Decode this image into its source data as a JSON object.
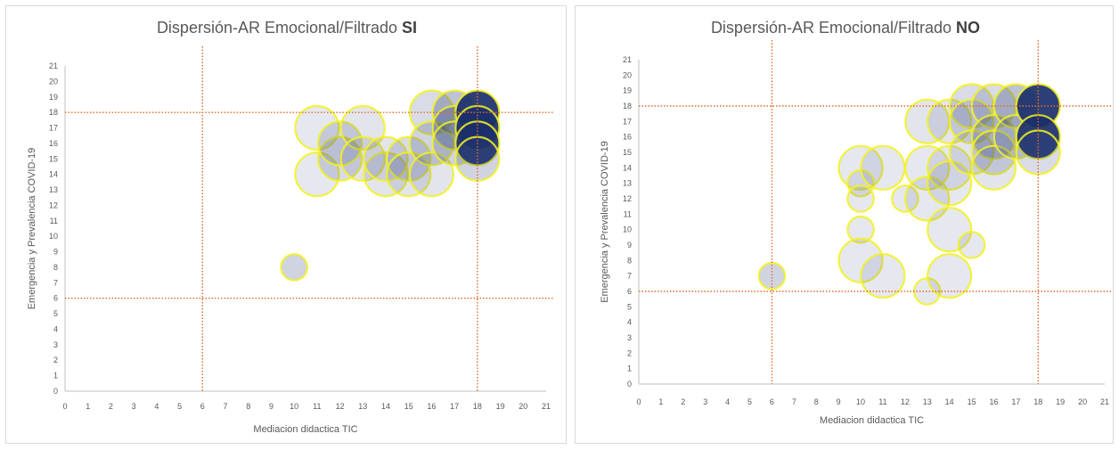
{
  "colors": {
    "bubble_fill": "#dfe3ee",
    "bubble_fill_dark": "#1b2f6b",
    "bubble_stroke": "#f2f21f",
    "ref_line": "#e26b2a",
    "axis": "#bfbfbf",
    "text": "#595959"
  },
  "chart_data": [
    {
      "type": "scatter",
      "title": "Dispersión-AR Emocional/Filtrado ",
      "title_bold": "SI",
      "xlabel": "Mediacion didactica TIC",
      "ylabel": "Emergencia y Prevalencia COVID-19",
      "xlim": [
        0,
        21
      ],
      "ylim": [
        0,
        21
      ],
      "xticks": [
        "0",
        "1",
        "2",
        "3",
        "4",
        "5",
        "6",
        "7",
        "8",
        "9",
        "10",
        "11",
        "12",
        "13",
        "14",
        "15",
        "16",
        "17",
        "18",
        "19",
        "20",
        "21"
      ],
      "yticks": [
        "0",
        "1",
        "2",
        "3",
        "4",
        "5",
        "6",
        "7",
        "8",
        "9",
        "10",
        "11",
        "12",
        "13",
        "14",
        "15",
        "16",
        "17",
        "18",
        "19",
        "20",
        "21"
      ],
      "reference_lines": {
        "x": [
          6,
          18
        ],
        "y": [
          6,
          18
        ]
      },
      "points": [
        {
          "x": 10,
          "y": 8,
          "size": 1,
          "opacity": 0.6
        },
        {
          "x": 11,
          "y": 17,
          "size": 2,
          "opacity": 0.45
        },
        {
          "x": 11,
          "y": 14,
          "size": 2,
          "opacity": 0.45
        },
        {
          "x": 12,
          "y": 15,
          "size": 2,
          "opacity": 0.55
        },
        {
          "x": 12,
          "y": 16,
          "size": 2,
          "opacity": 0.55
        },
        {
          "x": 13,
          "y": 17,
          "size": 2,
          "opacity": 0.5
        },
        {
          "x": 13,
          "y": 15,
          "size": 2,
          "opacity": 0.5
        },
        {
          "x": 14,
          "y": 14,
          "size": 2,
          "opacity": 0.5
        },
        {
          "x": 14,
          "y": 15,
          "size": 2,
          "opacity": 0.5
        },
        {
          "x": 15,
          "y": 15,
          "size": 2,
          "opacity": 0.55
        },
        {
          "x": 15,
          "y": 14,
          "size": 2,
          "opacity": 0.5
        },
        {
          "x": 16,
          "y": 18,
          "size": 2,
          "opacity": 0.55
        },
        {
          "x": 16,
          "y": 16,
          "size": 2,
          "opacity": 0.6
        },
        {
          "x": 16,
          "y": 14,
          "size": 2,
          "opacity": 0.5
        },
        {
          "x": 17,
          "y": 18,
          "size": 2,
          "opacity": 0.7
        },
        {
          "x": 17,
          "y": 17,
          "size": 2,
          "opacity": 0.7
        },
        {
          "x": 17,
          "y": 16,
          "size": 2,
          "opacity": 0.6
        },
        {
          "x": 18,
          "y": 18,
          "size": 2,
          "opacity": 1.0
        },
        {
          "x": 18,
          "y": 17,
          "size": 2,
          "opacity": 0.95
        },
        {
          "x": 18,
          "y": 16,
          "size": 2,
          "opacity": 0.9
        },
        {
          "x": 18,
          "y": 15,
          "size": 2,
          "opacity": 0.6
        }
      ]
    },
    {
      "type": "scatter",
      "title": "Dispersión-AR Emocional/Filtrado ",
      "title_bold": "NO",
      "xlabel": "Mediacion didactica TIC",
      "ylabel": "Emergencia y Prevalencia COVID-19",
      "xlim": [
        0,
        21
      ],
      "ylim": [
        0,
        21
      ],
      "xticks": [
        "0",
        "1",
        "2",
        "3",
        "4",
        "5",
        "6",
        "7",
        "8",
        "9",
        "10",
        "11",
        "12",
        "13",
        "14",
        "15",
        "16",
        "17",
        "18",
        "19",
        "20",
        "21"
      ],
      "yticks": [
        "0",
        "1",
        "2",
        "3",
        "4",
        "5",
        "6",
        "7",
        "8",
        "9",
        "10",
        "11",
        "12",
        "13",
        "14",
        "15",
        "16",
        "17",
        "18",
        "19",
        "20",
        "21"
      ],
      "reference_lines": {
        "x": [
          6,
          18
        ],
        "y": [
          6,
          18
        ]
      },
      "points": [
        {
          "x": 6,
          "y": 7,
          "size": 1,
          "opacity": 0.6
        },
        {
          "x": 10,
          "y": 14,
          "size": 2,
          "opacity": 0.45
        },
        {
          "x": 10,
          "y": 13,
          "size": 1,
          "opacity": 0.45
        },
        {
          "x": 10,
          "y": 12,
          "size": 1,
          "opacity": 0.45
        },
        {
          "x": 10,
          "y": 10,
          "size": 1,
          "opacity": 0.45
        },
        {
          "x": 10,
          "y": 8,
          "size": 2,
          "opacity": 0.45
        },
        {
          "x": 11,
          "y": 14,
          "size": 2,
          "opacity": 0.45
        },
        {
          "x": 11,
          "y": 7,
          "size": 2,
          "opacity": 0.45
        },
        {
          "x": 12,
          "y": 12,
          "size": 1,
          "opacity": 0.45
        },
        {
          "x": 13,
          "y": 17,
          "size": 2,
          "opacity": 0.5
        },
        {
          "x": 13,
          "y": 14,
          "size": 2,
          "opacity": 0.45
        },
        {
          "x": 13,
          "y": 12,
          "size": 2,
          "opacity": 0.45
        },
        {
          "x": 13,
          "y": 6,
          "size": 1,
          "opacity": 0.45
        },
        {
          "x": 14,
          "y": 17,
          "size": 2,
          "opacity": 0.5
        },
        {
          "x": 14,
          "y": 14,
          "size": 2,
          "opacity": 0.45
        },
        {
          "x": 14,
          "y": 13,
          "size": 2,
          "opacity": 0.45
        },
        {
          "x": 14,
          "y": 10,
          "size": 2,
          "opacity": 0.45
        },
        {
          "x": 14,
          "y": 7,
          "size": 2,
          "opacity": 0.45
        },
        {
          "x": 15,
          "y": 18,
          "size": 2,
          "opacity": 0.55
        },
        {
          "x": 15,
          "y": 17,
          "size": 2,
          "opacity": 0.55
        },
        {
          "x": 15,
          "y": 15,
          "size": 2,
          "opacity": 0.5
        },
        {
          "x": 15,
          "y": 9,
          "size": 1,
          "opacity": 0.45
        },
        {
          "x": 16,
          "y": 18,
          "size": 2,
          "opacity": 0.55
        },
        {
          "x": 16,
          "y": 16,
          "size": 2,
          "opacity": 0.65
        },
        {
          "x": 16,
          "y": 15,
          "size": 2,
          "opacity": 0.55
        },
        {
          "x": 16,
          "y": 14,
          "size": 2,
          "opacity": 0.5
        },
        {
          "x": 17,
          "y": 18,
          "size": 2,
          "opacity": 0.7
        },
        {
          "x": 17,
          "y": 16,
          "size": 2,
          "opacity": 0.6
        },
        {
          "x": 18,
          "y": 18,
          "size": 2,
          "opacity": 1.0
        },
        {
          "x": 18,
          "y": 16,
          "size": 2,
          "opacity": 1.0
        },
        {
          "x": 18,
          "y": 15,
          "size": 2,
          "opacity": 0.55
        }
      ]
    }
  ]
}
